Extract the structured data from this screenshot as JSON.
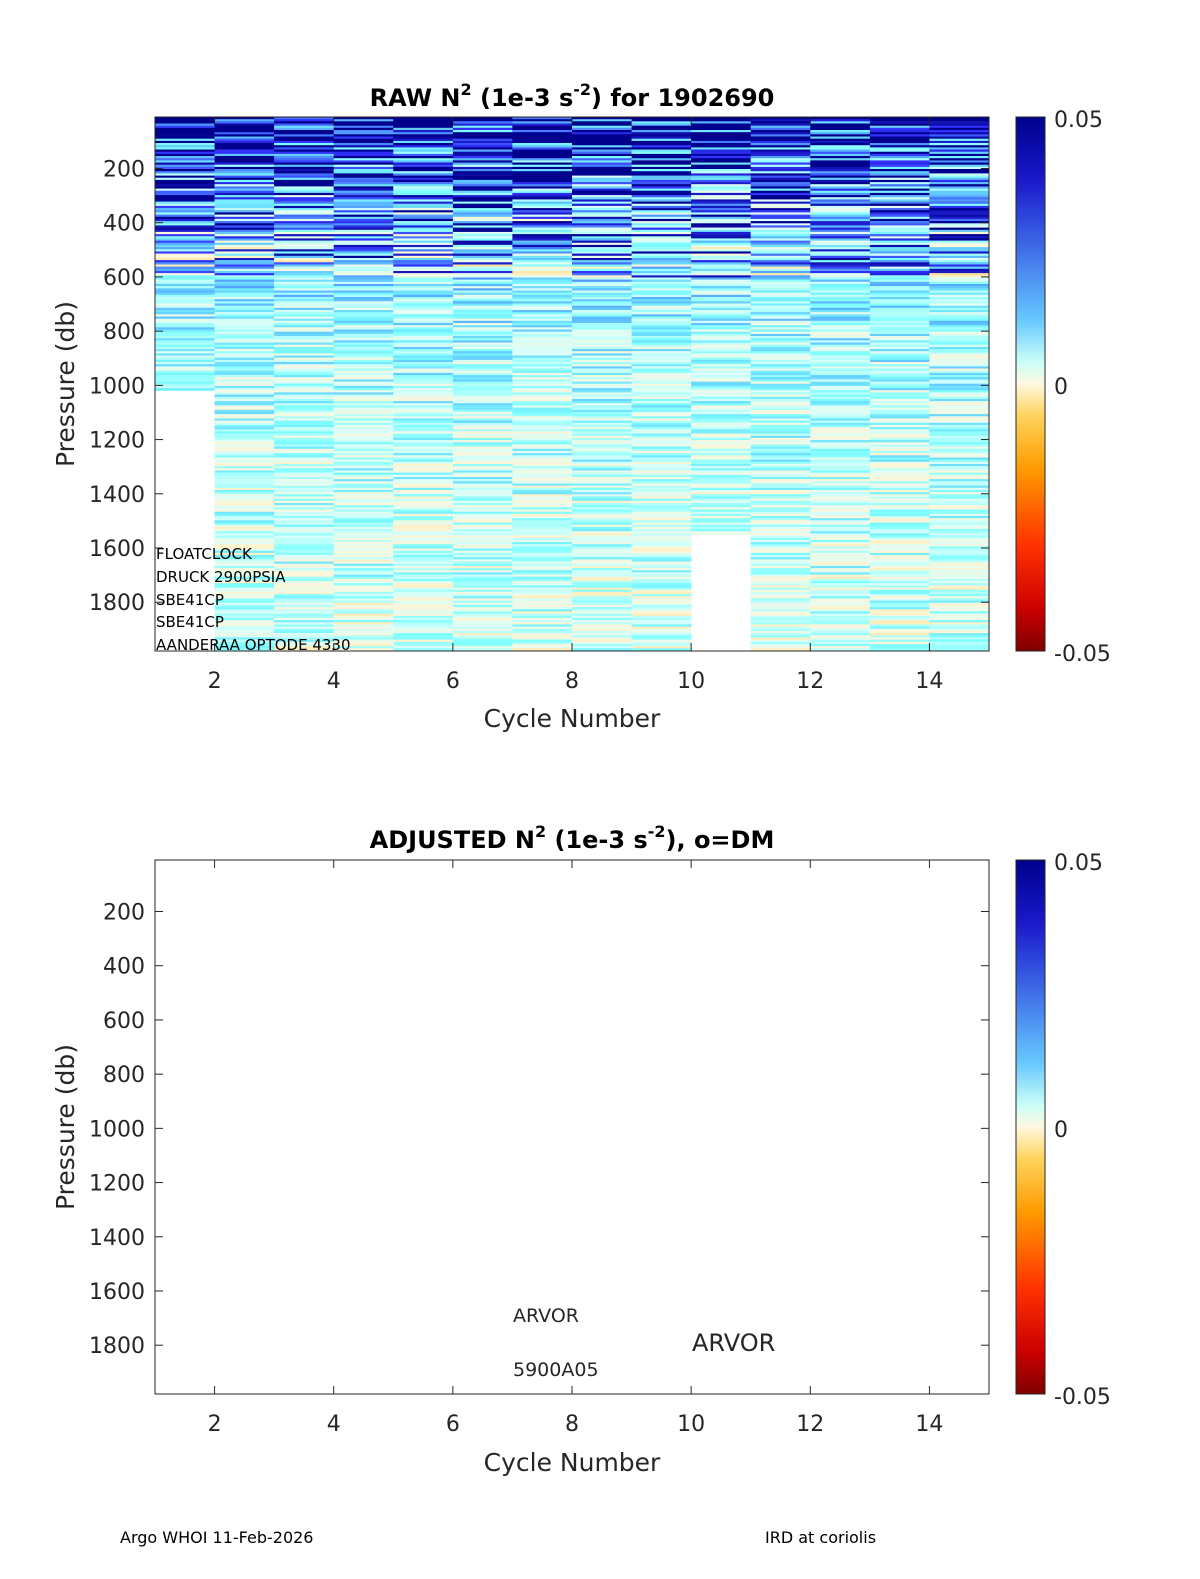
{
  "chart_data": [
    {
      "type": "heatmap",
      "title_main": "RAW N",
      "title_sup": "2",
      "title_mid": " (1e-3 s",
      "title_sup2": "-2",
      "title_end": ") for 1902690",
      "xlabel": "Cycle Number",
      "ylabel": "Pressure (db)",
      "xlim": [
        1,
        15
      ],
      "ylim": [
        1980,
        10
      ],
      "xticks": [
        "2",
        "4",
        "6",
        "8",
        "10",
        "12",
        "14"
      ],
      "yticks": [
        "200",
        "400",
        "600",
        "800",
        "1000",
        "1200",
        "1400",
        "1600",
        "1800"
      ],
      "colorbar": {
        "min": -0.05,
        "max": 0.05,
        "labels": [
          "0.05",
          "0",
          "-0.05"
        ]
      },
      "colormap": [
        "#7f0000",
        "#ff1a00",
        "#ff8c00",
        "#ffd35c",
        "#fff5d6",
        "#d9fff9",
        "#7fffff",
        "#59b3ff",
        "#3333ff",
        "#00008c"
      ],
      "columns": [
        {
          "cycle": 1,
          "max_pressure": 1020
        },
        {
          "cycle": 2,
          "max_pressure": 1980
        },
        {
          "cycle": 3,
          "max_pressure": 1980
        },
        {
          "cycle": 4,
          "max_pressure": 1980
        },
        {
          "cycle": 5,
          "max_pressure": 1980
        },
        {
          "cycle": 6,
          "max_pressure": 1980
        },
        {
          "cycle": 7,
          "max_pressure": 1980
        },
        {
          "cycle": 8,
          "max_pressure": 1980
        },
        {
          "cycle": 9,
          "max_pressure": 1980
        },
        {
          "cycle": 10,
          "max_pressure": 1550
        },
        {
          "cycle": 11,
          "max_pressure": 1980
        },
        {
          "cycle": 12,
          "max_pressure": 1980
        },
        {
          "cycle": 13,
          "max_pressure": 1980
        },
        {
          "cycle": 14,
          "max_pressure": 1980
        }
      ],
      "profile_trend": [
        {
          "pressure": 10,
          "n2": 0.05
        },
        {
          "pressure": 100,
          "n2": 0.045
        },
        {
          "pressure": 300,
          "n2": 0.03
        },
        {
          "pressure": 500,
          "n2": 0.02
        },
        {
          "pressure": 800,
          "n2": 0.012
        },
        {
          "pressure": 1200,
          "n2": 0.008
        },
        {
          "pressure": 1980,
          "n2": 0.005
        }
      ],
      "sensors": [
        "FLOATCLOCK",
        "DRUCK 2900PSIA",
        "SBE41CP",
        "SBE41CP",
        "AANDERAA OPTODE 4330"
      ]
    },
    {
      "type": "heatmap",
      "title_main": "ADJUSTED N",
      "title_sup": "2",
      "title_mid": " (1e-3 s",
      "title_sup2": "-2",
      "title_end": "), o=DM",
      "xlabel": "Cycle Number",
      "ylabel": "Pressure (db)",
      "xlim": [
        1,
        15
      ],
      "ylim": [
        1980,
        10
      ],
      "xticks": [
        "2",
        "4",
        "6",
        "8",
        "10",
        "12",
        "14"
      ],
      "yticks": [
        "200",
        "400",
        "600",
        "800",
        "1000",
        "1200",
        "1400",
        "1600",
        "1800"
      ],
      "colorbar": {
        "min": -0.05,
        "max": 0.05,
        "labels": [
          "0.05",
          "0",
          "-0.05"
        ]
      },
      "annotations": {
        "platform": "ARVOR",
        "serial": "5900A05",
        "model": "ARVOR"
      }
    }
  ],
  "footer": {
    "left": "Argo WHOI 11-Feb-2026",
    "right": "IRD at coriolis"
  }
}
